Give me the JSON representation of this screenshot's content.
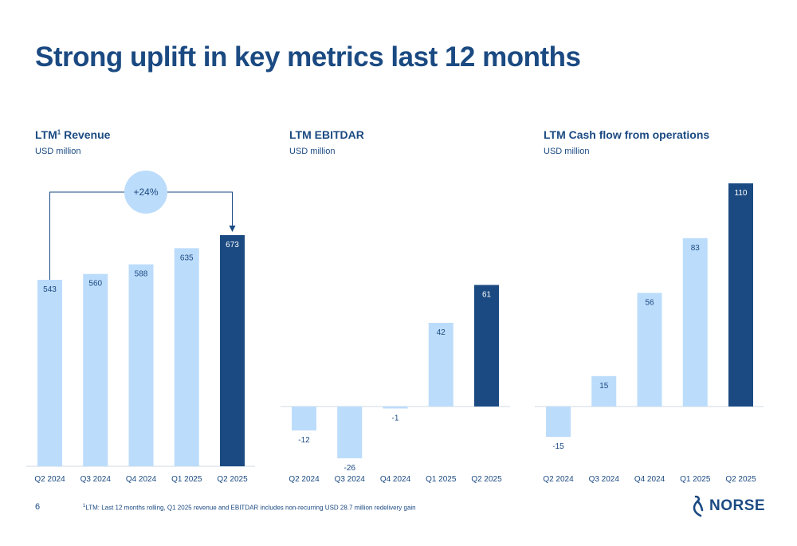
{
  "title": "Strong uplift in key metrics last 12 months",
  "page_number": "6",
  "footnote": {
    "marker": "1",
    "text": "LTM: Last 12 months rolling, Q1 2025 revenue and EBITDAR includes non-recurring USD 28.7 million redelivery gain"
  },
  "logo": {
    "text": "NORSE"
  },
  "colors": {
    "light_bar": "#bcdcfb",
    "dark_bar": "#1b4a82",
    "text": "#1b4a82",
    "baseline": "#cfd8e3"
  },
  "charts": [
    {
      "title": "LTM",
      "title_sup": "1",
      "title_rest": " Revenue",
      "subtitle": "USD million"
    },
    {
      "title": "LTM EBITDAR",
      "subtitle": "USD million"
    },
    {
      "title": "LTM Cash flow from operations",
      "subtitle": "USD million"
    }
  ],
  "growth_callout": {
    "label": "+24%",
    "from_category": "Q2 2024",
    "to_category": "Q2 2025"
  },
  "chart_data": [
    {
      "type": "bar",
      "categories": [
        "Q2 2024",
        "Q3 2024",
        "Q4 2024",
        "Q1 2025",
        "Q2 2025"
      ],
      "values": [
        543,
        560,
        588,
        635,
        673
      ],
      "data_labels": [
        "543",
        "560",
        "588",
        "635",
        "673"
      ],
      "highlight_index": 4,
      "ylim": [
        0,
        673
      ]
    },
    {
      "type": "bar",
      "categories": [
        "Q2 2024",
        "Q3 2024",
        "Q4 2024",
        "Q1 2025",
        "Q2 2025"
      ],
      "values": [
        -12,
        -26,
        -1,
        42,
        61
      ],
      "data_labels": [
        "-12",
        "-26",
        "-1",
        "42",
        "61"
      ],
      "highlight_index": 4,
      "ylim": [
        -26,
        61
      ]
    },
    {
      "type": "bar",
      "categories": [
        "Q2 2024",
        "Q3 2024",
        "Q4 2024",
        "Q1 2025",
        "Q2 2025"
      ],
      "values": [
        -15,
        15,
        56,
        83,
        110
      ],
      "data_labels": [
        "-15",
        "15",
        "56",
        "83",
        "110"
      ],
      "highlight_index": 4,
      "ylim": [
        -15,
        110
      ]
    }
  ]
}
